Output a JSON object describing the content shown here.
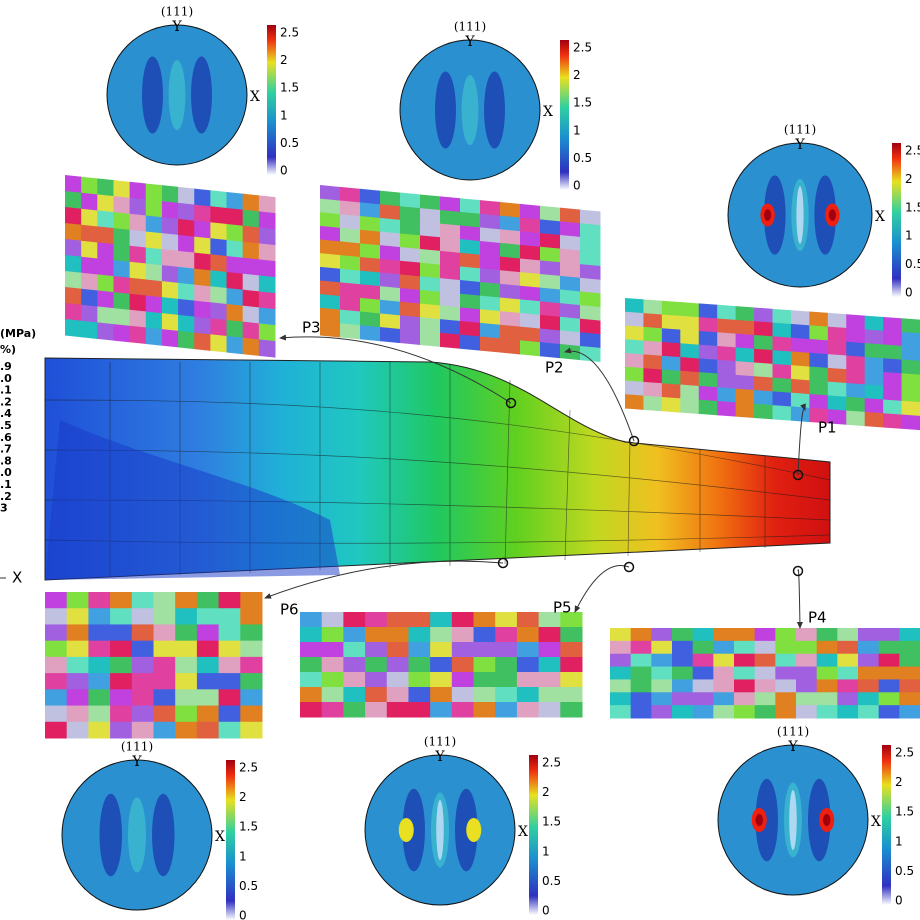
{
  "pole_figures": [
    {
      "plane": "(111)",
      "y_axis": "Y",
      "x_axis": "X",
      "colorbar_ticks": [
        "2.5",
        "2",
        "1.5",
        "1",
        "0.5",
        "0"
      ]
    },
    {
      "plane": "(111)",
      "y_axis": "Y",
      "x_axis": "X",
      "colorbar_ticks": [
        "2.5",
        "2",
        "1.5",
        "1",
        "0.5",
        "0"
      ]
    },
    {
      "plane": "(111)",
      "y_axis": "Y",
      "x_axis": "X",
      "colorbar_ticks": [
        "2.5",
        "2",
        "1.5",
        "1",
        "0.5",
        "0"
      ]
    },
    {
      "plane": "(111)",
      "y_axis": "Y",
      "x_axis": "X",
      "colorbar_ticks": [
        "2.5",
        "2",
        "1.5",
        "1",
        "0.5",
        "0"
      ]
    },
    {
      "plane": "(111)",
      "y_axis": "Y",
      "x_axis": "X",
      "colorbar_ticks": [
        "2.5",
        "2",
        "1.5",
        "1",
        "0.5",
        "0"
      ]
    },
    {
      "plane": "(111)",
      "y_axis": "Y",
      "x_axis": "X",
      "colorbar_ticks": [
        "2.5",
        "2",
        "1.5",
        "1",
        "0.5",
        "0"
      ]
    }
  ],
  "points": [
    "P3",
    "P2",
    "P1",
    "P6",
    "P5",
    "P4"
  ],
  "legend": {
    "title": "(MPa)",
    "subtitle": "%)",
    "values": [
      ".9",
      ".0",
      ".1",
      ".2",
      ".4",
      ".5",
      ".6",
      ".7",
      ".8",
      ".0",
      ".1",
      ".2",
      "3"
    ]
  },
  "axis_label": "X"
}
